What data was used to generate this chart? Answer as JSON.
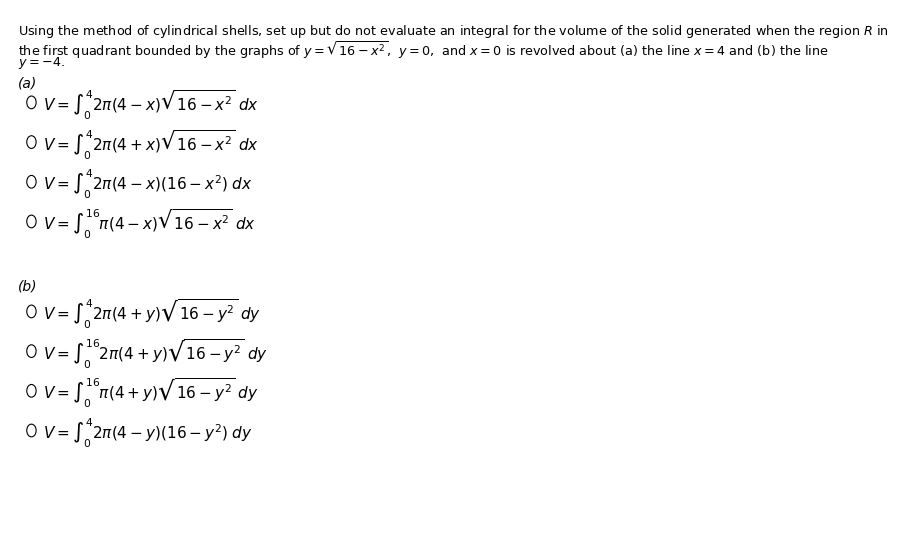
{
  "background_color": "#ffffff",
  "header_text": "Using the method of cylindrical shells, set up but do not evaluate an integral for the volume of the solid generated when the region R in\nthe first quadrant bounded by the graphs of $y = \\sqrt{16 - x^2}$,  $y = 0$,  and $x = 0$ is revolved about (a) the line $x = 4$ and (b) the line\n$y = -4$.",
  "part_a_label": "(a)",
  "part_b_label": "(b)",
  "part_a_options": [
    "$V = \\displaystyle\\int_0^{4} 2\\pi(4 - x)\\sqrt{16 - x^2}\\; \\dot{x}x$",
    "$V = \\displaystyle\\int_0^{4} 2\\pi(4 + x)\\sqrt{16 - x^2}\\; \\dot{x}x$",
    "$V = \\displaystyle\\int_0^{4} 2\\pi(4 - x)(16 - x^2)\\; \\dot{x}x$",
    "$V = \\displaystyle\\int_0^{16} \\pi(4 - x)\\sqrt{16 - x^2}\\; \\dot{x}x$"
  ],
  "part_b_options": [
    "$V = \\displaystyle\\int_0^{4} 2\\pi(4 + y)\\sqrt{16 - y^2}\\; \\dot{x}y$",
    "$V = \\displaystyle\\int_0^{16} 2\\pi(4 + y)\\sqrt{16 - y^2}\\; \\dot{x}y$",
    "$V = \\displaystyle\\int_0^{16} \\pi(4 + y)\\sqrt{16 - y^2}\\; \\dot{x}y$",
    "$V = \\displaystyle\\int_0^{4} 2\\pi(4 - y)(16 - y^2)\\; \\dot{x}y$"
  ]
}
